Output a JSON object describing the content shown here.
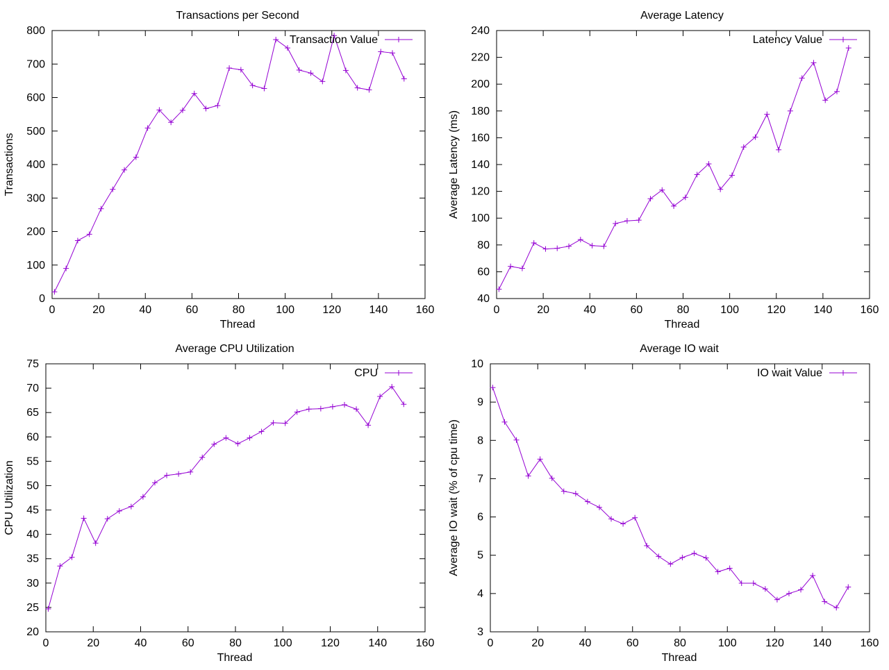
{
  "series_color": "#9400d3",
  "chart_data": [
    {
      "type": "line",
      "title": "Transactions per Second",
      "xlabel": "Thread",
      "ylabel": "Transactions",
      "xlim": [
        0,
        160
      ],
      "ylim": [
        0,
        800
      ],
      "xticks": [
        0,
        20,
        40,
        60,
        80,
        100,
        120,
        140,
        160
      ],
      "yticks": [
        0,
        100,
        200,
        300,
        400,
        500,
        600,
        700,
        800
      ],
      "legend": "top-right",
      "series": [
        {
          "name": "Transaction Value",
          "x": [
            1,
            6,
            11,
            16,
            21,
            26,
            31,
            36,
            41,
            46,
            51,
            56,
            61,
            66,
            71,
            76,
            81,
            86,
            91,
            96,
            101,
            106,
            111,
            116,
            121,
            126,
            131,
            136,
            141,
            146,
            151
          ],
          "y": [
            20,
            90,
            173,
            192,
            268,
            326,
            384,
            422,
            509,
            563,
            526,
            562,
            612,
            567,
            576,
            688,
            683,
            636,
            627,
            773,
            748,
            682,
            673,
            648,
            785,
            681,
            629,
            623,
            737,
            733,
            656
          ]
        }
      ]
    },
    {
      "type": "line",
      "title": "Average Latency",
      "xlabel": "Thread",
      "ylabel": "Average Latency (ms)",
      "xlim": [
        0,
        160
      ],
      "ylim": [
        40,
        240
      ],
      "xticks": [
        0,
        20,
        40,
        60,
        80,
        100,
        120,
        140,
        160
      ],
      "yticks": [
        40,
        60,
        80,
        100,
        120,
        140,
        160,
        180,
        200,
        220,
        240
      ],
      "legend": "top-right",
      "series": [
        {
          "name": "Latency Value",
          "x": [
            1,
            6,
            11,
            16,
            21,
            26,
            31,
            36,
            41,
            46,
            51,
            56,
            61,
            66,
            71,
            76,
            81,
            86,
            91,
            96,
            101,
            106,
            111,
            116,
            121,
            126,
            131,
            136,
            141,
            146,
            151
          ],
          "y": [
            47,
            64,
            62.5,
            81.5,
            77,
            77.5,
            79,
            84,
            79.5,
            79,
            96,
            98,
            98.5,
            114.5,
            121,
            109,
            115.5,
            132.5,
            140.5,
            121.5,
            132,
            153,
            160.5,
            177.5,
            151,
            180,
            204.5,
            216,
            188,
            194.5,
            227
          ]
        }
      ]
    },
    {
      "type": "line",
      "title": "Average CPU Utilization",
      "xlabel": "Thread",
      "ylabel": "CPU Utilization",
      "xlim": [
        0,
        160
      ],
      "ylim": [
        20,
        75
      ],
      "xticks": [
        0,
        20,
        40,
        60,
        80,
        100,
        120,
        140,
        160
      ],
      "yticks": [
        20,
        25,
        30,
        35,
        40,
        45,
        50,
        55,
        60,
        65,
        70,
        75
      ],
      "legend": "top-right",
      "series": [
        {
          "name": "CPU",
          "x": [
            1,
            6,
            11,
            16,
            21,
            26,
            31,
            36,
            41,
            46,
            51,
            56,
            61,
            66,
            71,
            76,
            81,
            86,
            91,
            96,
            101,
            106,
            111,
            116,
            121,
            126,
            131,
            136,
            141,
            146,
            151
          ],
          "y": [
            24.7,
            33.5,
            35.3,
            43.3,
            38.2,
            43.2,
            44.8,
            45.7,
            47.7,
            50.6,
            52.1,
            52.4,
            52.8,
            55.8,
            58.5,
            59.8,
            58.6,
            59.8,
            61.1,
            62.9,
            62.8,
            65.1,
            65.7,
            65.8,
            66.2,
            66.6,
            65.7,
            62.4,
            68.3,
            70.3,
            66.7
          ]
        }
      ]
    },
    {
      "type": "line",
      "title": "Average IO wait",
      "xlabel": "Thread",
      "ylabel": "Average IO wait (% of cpu time)",
      "xlim": [
        0,
        160
      ],
      "ylim": [
        3,
        10
      ],
      "xticks": [
        0,
        20,
        40,
        60,
        80,
        100,
        120,
        140,
        160
      ],
      "yticks": [
        3,
        4,
        5,
        6,
        7,
        8,
        9,
        10
      ],
      "legend": "top-right",
      "series": [
        {
          "name": "IO wait Value",
          "x": [
            1,
            6,
            11,
            16,
            21,
            26,
            31,
            36,
            41,
            46,
            51,
            56,
            61,
            66,
            71,
            76,
            81,
            86,
            91,
            96,
            101,
            106,
            111,
            116,
            121,
            126,
            131,
            136,
            141,
            146,
            151
          ],
          "y": [
            9.38,
            8.48,
            8.01,
            7.07,
            7.51,
            7.01,
            6.67,
            6.61,
            6.4,
            6.25,
            5.95,
            5.82,
            5.98,
            5.25,
            4.97,
            4.77,
            4.94,
            5.05,
            4.93,
            4.57,
            4.66,
            4.27,
            4.27,
            4.12,
            3.84,
            4.0,
            4.1,
            4.47,
            3.79,
            3.63,
            4.17
          ]
        }
      ]
    }
  ]
}
